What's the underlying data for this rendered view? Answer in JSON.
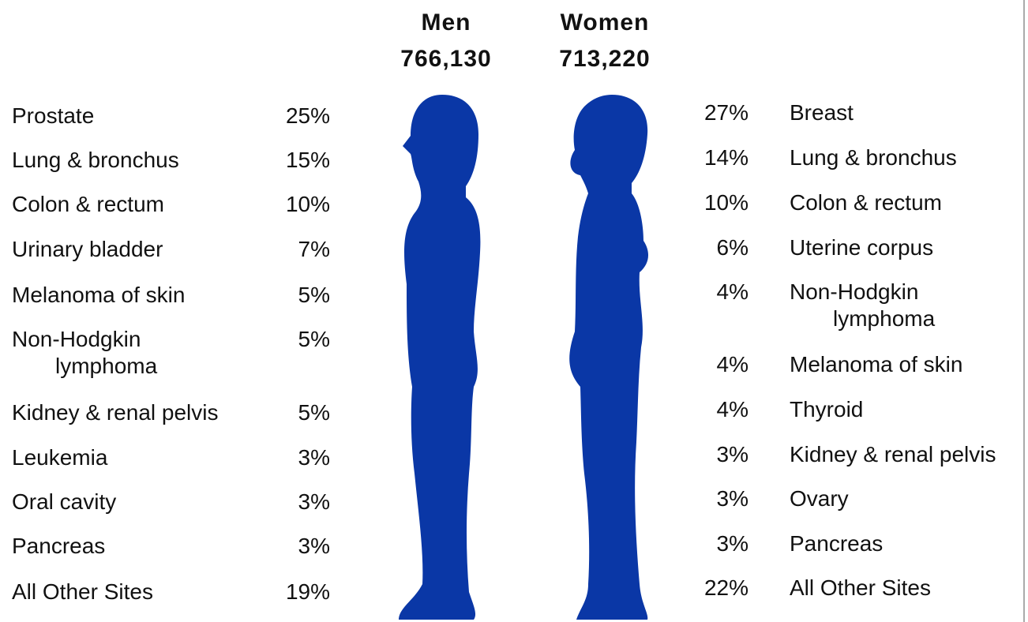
{
  "men": {
    "title": "Men",
    "total": "766,130",
    "rows": [
      {
        "site": "Prostate",
        "percent": "25%"
      },
      {
        "site": "Lung & bronchus",
        "percent": "15%"
      },
      {
        "site": "Colon & rectum",
        "percent": "10%"
      },
      {
        "site": "Urinary bladder",
        "percent": "7%"
      },
      {
        "site": "Melanoma of skin",
        "percent": "5%"
      },
      {
        "site": "Non-Hodgkin lymphoma",
        "percent": "5%"
      },
      {
        "site": "Kidney & renal pelvis",
        "percent": "5%"
      },
      {
        "site": "Leukemia",
        "percent": "3%"
      },
      {
        "site": "Oral cavity",
        "percent": "3%"
      },
      {
        "site": "Pancreas",
        "percent": "3%"
      },
      {
        "site": "All Other Sites",
        "percent": "19%"
      }
    ]
  },
  "women": {
    "title": "Women",
    "total": "713,220",
    "rows": [
      {
        "site": "Breast",
        "percent": "27%"
      },
      {
        "site": "Lung & bronchus",
        "percent": "14%"
      },
      {
        "site": "Colon & rectum",
        "percent": "10%"
      },
      {
        "site": "Uterine corpus",
        "percent": "6%"
      },
      {
        "site": "Non-Hodgkin lymphoma",
        "percent": "4%"
      },
      {
        "site": "Melanoma of skin",
        "percent": "4%"
      },
      {
        "site": "Thyroid",
        "percent": "4%"
      },
      {
        "site": "Kidney & renal pelvis",
        "percent": "3%"
      },
      {
        "site": "Ovary",
        "percent": "3%"
      },
      {
        "site": "Pancreas",
        "percent": "3%"
      },
      {
        "site": "All Other Sites",
        "percent": "22%"
      }
    ]
  }
}
